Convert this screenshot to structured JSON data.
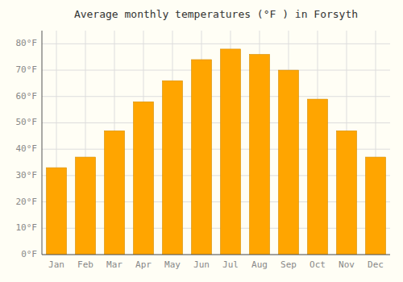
{
  "chart_data": {
    "type": "bar",
    "title": "Average monthly temperatures (°F ) in Forsyth",
    "categories": [
      "Jan",
      "Feb",
      "Mar",
      "Apr",
      "May",
      "Jun",
      "Jul",
      "Aug",
      "Sep",
      "Oct",
      "Nov",
      "Dec"
    ],
    "values": [
      33,
      37,
      47,
      58,
      66,
      74,
      78,
      76,
      70,
      59,
      47,
      37
    ],
    "color": "#FFA500",
    "ylim": [
      0,
      85
    ],
    "yticks": [
      {
        "value": 0,
        "label": "0°F"
      },
      {
        "value": 10,
        "label": "10°F"
      },
      {
        "value": 20,
        "label": "20°F"
      },
      {
        "value": 30,
        "label": "30°F"
      },
      {
        "value": 40,
        "label": "40°F"
      },
      {
        "value": 50,
        "label": "50°F"
      },
      {
        "value": 60,
        "label": "60°F"
      },
      {
        "value": 70,
        "label": "70°F"
      },
      {
        "value": 80,
        "label": "80°F"
      }
    ],
    "grid": true
  }
}
